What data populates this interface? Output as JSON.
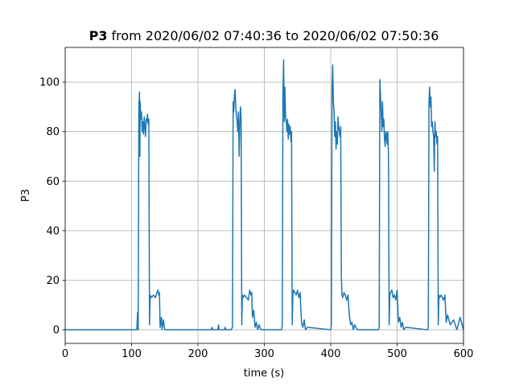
{
  "chart_data": {
    "type": "line",
    "title_bold": "P3",
    "title": "from 2020/06/02 07:40:36 to 2020/06/02 07:50:36",
    "xlabel": "time (s)",
    "ylabel": "P3",
    "xlim": [
      0,
      600
    ],
    "ylim": [
      -5.5,
      114
    ],
    "xticks": [
      0,
      100,
      200,
      300,
      400,
      500,
      600
    ],
    "yticks": [
      0,
      20,
      40,
      60,
      80,
      100
    ],
    "grid": true,
    "series": [
      {
        "color": "#1f77b4",
        "x": [
          0,
          108,
          109,
          110,
          111,
          112,
          112.5,
          113,
          114,
          115,
          116,
          117,
          118,
          119,
          120,
          121,
          122,
          123,
          124,
          125,
          126,
          127,
          128,
          130,
          133,
          136,
          138,
          140,
          141,
          142,
          143,
          145,
          146,
          148,
          150,
          152,
          220,
          221,
          222,
          230,
          231,
          232,
          240,
          241,
          242,
          250,
          252,
          253,
          254,
          255,
          256,
          257,
          258,
          259,
          260,
          261,
          262,
          263,
          264,
          265,
          266,
          267,
          268,
          270,
          273,
          276,
          278,
          280,
          281,
          282,
          284,
          286,
          288,
          290,
          292,
          295,
          326,
          327,
          328,
          329,
          330,
          331,
          332,
          333,
          334,
          335,
          336,
          337,
          338,
          339,
          340,
          341,
          342,
          343,
          344,
          346,
          348,
          350,
          352,
          354,
          355,
          356,
          358,
          360,
          362,
          365,
          400,
          401,
          402,
          403,
          404,
          405,
          406,
          407,
          408,
          409,
          410,
          411,
          412,
          413,
          414,
          415,
          416,
          417,
          418,
          420,
          422,
          424,
          426,
          428,
          430,
          432,
          434,
          436,
          440,
          445,
          472,
          473,
          474,
          475,
          476,
          477,
          478,
          479,
          480,
          481,
          482,
          483,
          484,
          485,
          486,
          487,
          488,
          489,
          490,
          492,
          494,
          496,
          498,
          500,
          502,
          504,
          506,
          508,
          510,
          513,
          546,
          547,
          548,
          549,
          550,
          551,
          552,
          553,
          554,
          555,
          556,
          557,
          558,
          559,
          560,
          561,
          562,
          563,
          564,
          566,
          568,
          570,
          572,
          574,
          576,
          580,
          585,
          590,
          595,
          600
        ],
        "values": [
          0,
          0,
          7,
          0,
          90,
          96,
          70,
          92,
          85,
          88,
          80,
          84,
          79,
          86,
          82,
          78,
          85,
          84,
          87,
          83,
          85,
          2,
          14,
          13,
          14,
          13,
          15,
          16,
          14,
          15,
          1,
          5,
          0,
          4,
          0,
          0,
          0,
          1,
          0,
          0,
          2,
          0,
          0,
          1,
          0,
          0,
          1,
          92,
          88,
          95,
          97,
          90,
          86,
          84,
          80,
          88,
          70,
          82,
          90,
          85,
          2,
          14,
          13,
          14,
          13,
          12,
          16,
          14,
          15,
          5,
          8,
          1,
          3,
          0,
          2,
          0,
          0,
          2,
          95,
          109,
          84,
          98,
          86,
          84,
          80,
          85,
          77,
          83,
          79,
          82,
          76,
          80,
          2,
          14,
          16,
          15,
          14,
          16,
          13,
          15,
          8,
          3,
          1,
          4,
          0,
          1,
          0,
          2,
          98,
          107,
          92,
          88,
          78,
          84,
          73,
          80,
          75,
          86,
          82,
          80,
          78,
          82,
          22,
          14,
          13,
          15,
          14,
          12,
          14,
          6,
          2,
          3,
          0,
          2,
          0,
          0,
          0,
          1,
          101,
          95,
          88,
          80,
          92,
          82,
          85,
          77,
          74,
          80,
          79,
          75,
          80,
          70,
          2,
          14,
          15,
          16,
          13,
          14,
          12,
          16,
          3,
          5,
          1,
          3,
          0,
          1,
          0,
          1,
          92,
          98,
          90,
          94,
          82,
          84,
          80,
          78,
          64,
          84,
          78,
          80,
          75,
          78,
          2,
          14,
          13,
          14,
          13,
          12,
          14,
          3,
          6,
          2,
          4,
          0,
          5,
          0
        ]
      }
    ]
  }
}
